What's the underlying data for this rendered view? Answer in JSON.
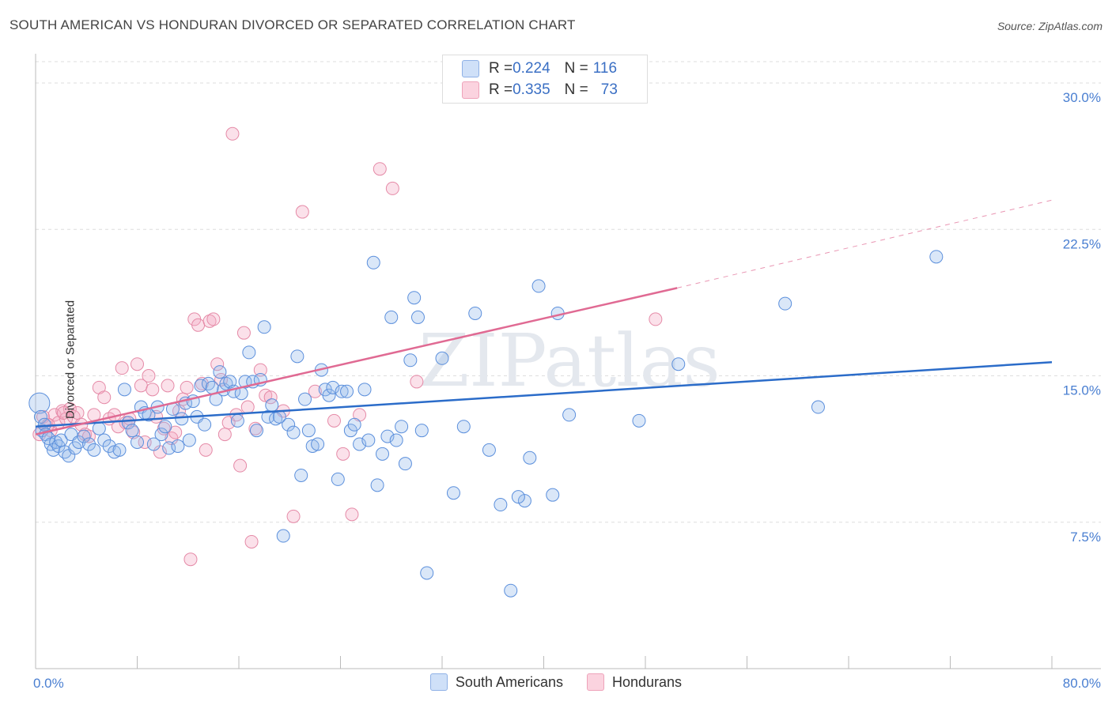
{
  "title": "SOUTH AMERICAN VS HONDURAN DIVORCED OR SEPARATED CORRELATION CHART",
  "source": "Source: ZipAtlas.com",
  "watermark": "ZIPatlas",
  "legend_top": [
    {
      "r_label": "R = ",
      "r_value": "0.224",
      "n_label": "N = ",
      "n_value": "116",
      "color": "#a9c4ef"
    },
    {
      "r_label": "R = ",
      "r_value": "0.335",
      "n_label": "N = ",
      "n_value": "73",
      "color": "#f4b6c8"
    }
  ],
  "colors": {
    "blue": "#5b8fdc",
    "blue_line": "#2b6cc9",
    "pink": "#e58aa7",
    "pink_line": "#e06a93",
    "tick_text": "#4a7fd1",
    "grid": "#dddddd"
  },
  "chart_data": {
    "type": "scatter",
    "title": "SOUTH AMERICAN VS HONDURAN DIVORCED OR SEPARATED CORRELATION CHART",
    "xlabel": "",
    "ylabel": "Divorced or Separated",
    "xlim": [
      0,
      80
    ],
    "ylim": [
      0,
      31.5
    ],
    "x_tick_labels": [
      {
        "value": 0,
        "label": "0.0%"
      },
      {
        "value": 80,
        "label": "80.0%"
      }
    ],
    "y_tick_labels": [
      {
        "value": 7.5,
        "label": "7.5%"
      },
      {
        "value": 15,
        "label": "15.0%"
      },
      {
        "value": 22.5,
        "label": "22.5%"
      },
      {
        "value": 30,
        "label": "30.0%"
      }
    ],
    "x_minor_ticks": [
      8,
      16,
      24,
      32,
      40,
      48,
      56,
      64,
      72,
      80
    ],
    "series": [
      {
        "name": "South Americans",
        "color": "#5b8fdc",
        "trend": {
          "x0": 0,
          "y0": 12.4,
          "x1": 80,
          "y1": 15.7,
          "dashed_to": 80
        },
        "points": [
          [
            0.3,
            13.6
          ],
          [
            0.4,
            12.9
          ],
          [
            0.5,
            12.2
          ],
          [
            0.7,
            12.5
          ],
          [
            0.8,
            12.0
          ],
          [
            1.0,
            11.8
          ],
          [
            1.2,
            11.5
          ],
          [
            1.4,
            11.2
          ],
          [
            1.6,
            11.6
          ],
          [
            1.8,
            11.4
          ],
          [
            2.0,
            11.7
          ],
          [
            2.3,
            11.1
          ],
          [
            2.6,
            10.9
          ],
          [
            2.8,
            12.0
          ],
          [
            3.1,
            11.3
          ],
          [
            3.4,
            11.6
          ],
          [
            3.8,
            11.9
          ],
          [
            4.2,
            11.5
          ],
          [
            4.6,
            11.2
          ],
          [
            5.0,
            12.3
          ],
          [
            5.4,
            11.7
          ],
          [
            5.8,
            11.4
          ],
          [
            6.2,
            11.1
          ],
          [
            6.6,
            11.2
          ],
          [
            7.0,
            14.3
          ],
          [
            7.3,
            12.6
          ],
          [
            7.6,
            12.2
          ],
          [
            8.0,
            11.6
          ],
          [
            8.3,
            13.4
          ],
          [
            8.6,
            13.1
          ],
          [
            8.9,
            13.0
          ],
          [
            9.3,
            11.5
          ],
          [
            9.6,
            13.4
          ],
          [
            9.9,
            12.0
          ],
          [
            10.2,
            12.4
          ],
          [
            10.5,
            11.3
          ],
          [
            10.8,
            13.3
          ],
          [
            11.2,
            11.4
          ],
          [
            11.5,
            12.8
          ],
          [
            11.8,
            13.6
          ],
          [
            12.1,
            11.7
          ],
          [
            12.4,
            13.7
          ],
          [
            12.7,
            12.9
          ],
          [
            13.0,
            14.5
          ],
          [
            13.3,
            12.5
          ],
          [
            13.6,
            14.6
          ],
          [
            13.9,
            14.4
          ],
          [
            14.2,
            13.8
          ],
          [
            14.5,
            15.2
          ],
          [
            14.8,
            14.3
          ],
          [
            15.0,
            14.6
          ],
          [
            15.3,
            14.7
          ],
          [
            15.6,
            14.2
          ],
          [
            15.9,
            12.7
          ],
          [
            16.2,
            14.1
          ],
          [
            16.5,
            14.7
          ],
          [
            16.8,
            16.2
          ],
          [
            17.1,
            14.7
          ],
          [
            17.4,
            12.2
          ],
          [
            17.7,
            14.8
          ],
          [
            18.0,
            17.5
          ],
          [
            18.3,
            12.9
          ],
          [
            18.6,
            13.5
          ],
          [
            18.9,
            12.8
          ],
          [
            19.2,
            12.9
          ],
          [
            19.5,
            6.8
          ],
          [
            19.9,
            12.5
          ],
          [
            20.3,
            12.1
          ],
          [
            20.6,
            16.0
          ],
          [
            20.9,
            9.9
          ],
          [
            21.2,
            13.8
          ],
          [
            21.5,
            12.2
          ],
          [
            21.8,
            11.4
          ],
          [
            22.2,
            11.5
          ],
          [
            22.5,
            15.3
          ],
          [
            22.8,
            14.3
          ],
          [
            23.1,
            14.0
          ],
          [
            23.4,
            14.4
          ],
          [
            23.8,
            9.7
          ],
          [
            24.1,
            14.2
          ],
          [
            24.5,
            14.2
          ],
          [
            24.8,
            12.2
          ],
          [
            25.1,
            12.5
          ],
          [
            25.5,
            11.5
          ],
          [
            25.9,
            14.3
          ],
          [
            26.2,
            11.7
          ],
          [
            26.6,
            20.8
          ],
          [
            26.9,
            9.4
          ],
          [
            27.3,
            11.0
          ],
          [
            27.7,
            11.9
          ],
          [
            28.0,
            18.0
          ],
          [
            28.4,
            11.7
          ],
          [
            28.8,
            12.4
          ],
          [
            29.1,
            10.5
          ],
          [
            29.5,
            15.8
          ],
          [
            29.8,
            19.0
          ],
          [
            30.1,
            18.0
          ],
          [
            30.4,
            12.2
          ],
          [
            30.8,
            4.9
          ],
          [
            32.0,
            15.9
          ],
          [
            32.9,
            9.0
          ],
          [
            33.7,
            12.4
          ],
          [
            34.6,
            18.2
          ],
          [
            35.7,
            11.2
          ],
          [
            38.5,
            8.6
          ],
          [
            38.9,
            10.8
          ],
          [
            39.6,
            19.6
          ],
          [
            40.7,
            8.9
          ],
          [
            41.1,
            18.2
          ],
          [
            42.0,
            13.0
          ],
          [
            47.5,
            12.7
          ],
          [
            50.6,
            15.6
          ],
          [
            59.0,
            18.7
          ],
          [
            61.6,
            13.4
          ],
          [
            70.9,
            21.1
          ],
          [
            36.6,
            8.4
          ],
          [
            38.0,
            8.8
          ],
          [
            37.4,
            4.0
          ]
        ]
      },
      {
        "name": "Hondurans",
        "color": "#e58aa7",
        "trend": {
          "x0": 0,
          "y0": 12.0,
          "x1": 50.5,
          "y1": 19.5,
          "dashed_to": 80,
          "dashed_y": 24.0
        },
        "points": [
          [
            0.6,
            12.9
          ],
          [
            0.9,
            12.4
          ],
          [
            1.2,
            12.2
          ],
          [
            1.5,
            13.0
          ],
          [
            1.8,
            12.6
          ],
          [
            2.1,
            13.2
          ],
          [
            2.4,
            12.8
          ],
          [
            2.7,
            13.3
          ],
          [
            3.0,
            12.9
          ],
          [
            3.3,
            13.1
          ],
          [
            3.6,
            12.5
          ],
          [
            3.9,
            12.0
          ],
          [
            4.2,
            11.9
          ],
          [
            4.6,
            13.0
          ],
          [
            5.0,
            14.4
          ],
          [
            5.4,
            13.9
          ],
          [
            5.8,
            12.8
          ],
          [
            6.2,
            13.0
          ],
          [
            6.5,
            12.4
          ],
          [
            6.8,
            15.4
          ],
          [
            7.1,
            12.6
          ],
          [
            7.4,
            12.8
          ],
          [
            7.7,
            12.1
          ],
          [
            8.0,
            15.6
          ],
          [
            8.3,
            14.5
          ],
          [
            8.6,
            11.6
          ],
          [
            8.9,
            15.0
          ],
          [
            9.2,
            14.3
          ],
          [
            9.5,
            12.9
          ],
          [
            9.8,
            11.1
          ],
          [
            10.1,
            12.3
          ],
          [
            10.4,
            14.5
          ],
          [
            10.7,
            11.8
          ],
          [
            11.0,
            12.1
          ],
          [
            11.3,
            13.2
          ],
          [
            11.6,
            13.8
          ],
          [
            11.9,
            14.4
          ],
          [
            12.2,
            5.6
          ],
          [
            12.5,
            17.9
          ],
          [
            12.8,
            17.6
          ],
          [
            13.1,
            14.6
          ],
          [
            13.4,
            11.2
          ],
          [
            13.7,
            17.8
          ],
          [
            14.0,
            17.9
          ],
          [
            14.3,
            15.6
          ],
          [
            14.6,
            14.8
          ],
          [
            14.9,
            12.0
          ],
          [
            15.2,
            12.6
          ],
          [
            15.5,
            27.4
          ],
          [
            15.8,
            13.0
          ],
          [
            16.1,
            10.4
          ],
          [
            16.4,
            17.2
          ],
          [
            16.7,
            13.4
          ],
          [
            17.0,
            6.5
          ],
          [
            17.3,
            12.3
          ],
          [
            17.7,
            15.3
          ],
          [
            18.1,
            14.0
          ],
          [
            18.5,
            13.9
          ],
          [
            19.5,
            13.2
          ],
          [
            20.3,
            7.8
          ],
          [
            21.0,
            23.4
          ],
          [
            22.0,
            14.2
          ],
          [
            23.5,
            12.7
          ],
          [
            24.2,
            11.0
          ],
          [
            24.9,
            7.9
          ],
          [
            25.5,
            13.0
          ],
          [
            27.1,
            25.6
          ],
          [
            28.1,
            24.6
          ],
          [
            30.0,
            14.7
          ],
          [
            48.8,
            17.9
          ],
          [
            0.3,
            12.0
          ],
          [
            1.0,
            12.5
          ],
          [
            2.2,
            13.1
          ]
        ]
      }
    ]
  }
}
